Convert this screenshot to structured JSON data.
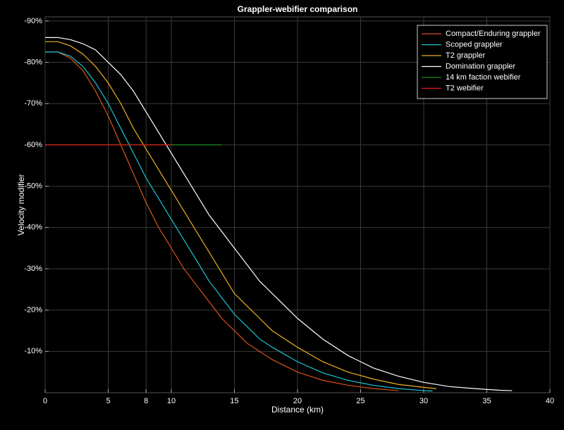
{
  "chart_data": {
    "type": "line",
    "title": "Grappler-webifier comparison",
    "x_label": "Distance (km)",
    "y_label": "Velocity modifier",
    "xlim": [
      0,
      40
    ],
    "xticks": [
      0,
      5,
      8,
      10,
      15,
      20,
      25,
      30,
      35,
      40
    ],
    "ylim": [
      0,
      -91
    ],
    "yticks": [
      {
        "value": -10,
        "label": "-10%"
      },
      {
        "value": -20,
        "label": "-20%"
      },
      {
        "value": -30,
        "label": "-30%"
      },
      {
        "value": -40,
        "label": "-40%"
      },
      {
        "value": -50,
        "label": "-50%"
      },
      {
        "value": -60,
        "label": "-60%"
      },
      {
        "value": -70,
        "label": "-70%"
      },
      {
        "value": -80,
        "label": "-80%"
      },
      {
        "value": -90,
        "label": "-90%"
      }
    ],
    "grid": true,
    "legend": "top-right",
    "series": [
      {
        "name": "Compact/Enduring grappler",
        "color": "#d95319",
        "x": [
          0,
          1,
          2,
          3,
          4,
          5,
          6,
          7,
          8,
          9,
          10,
          11,
          12,
          13,
          14,
          15,
          16,
          17,
          18,
          20,
          22,
          24,
          26,
          28
        ],
        "values": [
          -82.5,
          -82.5,
          -81,
          -78,
          -73,
          -67,
          -60,
          -53,
          -46,
          -40,
          -35,
          -30,
          -26,
          -22,
          -18,
          -15,
          -12,
          -10,
          -8,
          -5,
          -3,
          -1.8,
          -1,
          -0.5
        ]
      },
      {
        "name": "Scoped grappler",
        "color": "#1ac6d8",
        "x": [
          0,
          1,
          2,
          3,
          4,
          5,
          6,
          7,
          8,
          9,
          10,
          11,
          12,
          13,
          14,
          15,
          16,
          17,
          18,
          20,
          22,
          24,
          26,
          28,
          30,
          30.7
        ],
        "values": [
          -82.5,
          -82.5,
          -81.5,
          -79,
          -75,
          -70,
          -64,
          -58,
          -52,
          -47,
          -42,
          -37,
          -32,
          -27,
          -23,
          -19,
          -16,
          -13,
          -11,
          -7.5,
          -4.8,
          -3,
          -1.8,
          -1,
          -0.5,
          -0.4
        ]
      },
      {
        "name": "T2 grappler",
        "color": "#edb120",
        "x": [
          0,
          1,
          2,
          3,
          4,
          5,
          6,
          7,
          8,
          9,
          10,
          11,
          12,
          13,
          14,
          15,
          16,
          17,
          18,
          20,
          22,
          24,
          26,
          28,
          30,
          31
        ],
        "values": [
          -85,
          -85,
          -84,
          -82,
          -79,
          -75,
          -70,
          -64,
          -59,
          -54,
          -49,
          -44,
          -39,
          -34,
          -29,
          -24,
          -21,
          -18,
          -15,
          -11,
          -7.5,
          -5,
          -3.3,
          -2,
          -1.3,
          -1
        ]
      },
      {
        "name": "Domination grappler",
        "color": "#ffffff",
        "x": [
          0,
          1,
          2,
          3,
          4,
          5,
          6,
          7,
          8,
          9,
          10,
          11,
          12,
          13,
          14,
          15,
          16,
          17,
          18,
          19,
          20,
          22,
          24,
          26,
          28,
          30,
          32,
          34,
          36,
          37
        ],
        "values": [
          -86,
          -86,
          -85.5,
          -84.5,
          -83,
          -80,
          -77,
          -73,
          -68,
          -63,
          -58,
          -53,
          -48,
          -43,
          -39,
          -35,
          -31,
          -27,
          -24,
          -21,
          -18,
          -13,
          -9,
          -6,
          -4,
          -2.5,
          -1.5,
          -1,
          -0.6,
          -0.5
        ]
      },
      {
        "name": "14 km faction webifier",
        "color": "#1e8c1e",
        "x": [
          0,
          14
        ],
        "values": [
          -60,
          -60
        ]
      },
      {
        "name": "T2 webifier",
        "color": "#e31a1a",
        "x": [
          0,
          10
        ],
        "values": [
          -60,
          -60
        ]
      }
    ]
  }
}
